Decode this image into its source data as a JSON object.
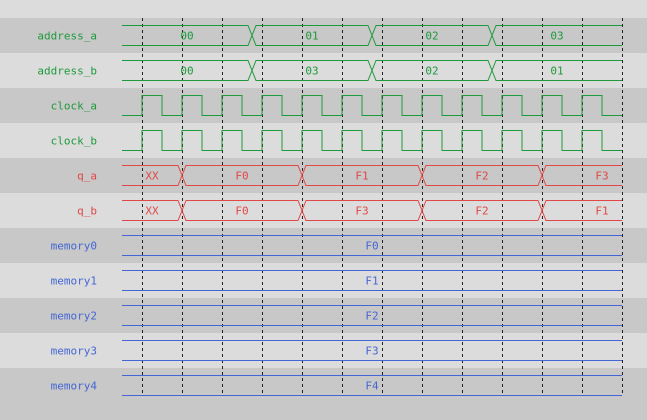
{
  "colors": {
    "row_dark": "#c8c8c8",
    "row_light": "#dcdcdc",
    "address": "#1e9a3c",
    "clock": "#1e9a3c",
    "output": "#e04848",
    "memory": "#4466d4",
    "grid": "#222222"
  },
  "clock_edges": 12,
  "signals": [
    {
      "name": "address_a",
      "kind": "bus",
      "color": "address",
      "segments": [
        {
          "value": "00",
          "start": 0,
          "end": 3
        },
        {
          "value": "01",
          "start": 3,
          "end": 6
        },
        {
          "value": "02",
          "start": 6,
          "end": 9
        },
        {
          "value": "03",
          "start": 9,
          "end": 12.0
        }
      ]
    },
    {
      "name": "address_b",
      "kind": "bus",
      "color": "address",
      "segments": [
        {
          "value": "00",
          "start": 0,
          "end": 3
        },
        {
          "value": "03",
          "start": 3,
          "end": 6
        },
        {
          "value": "02",
          "start": 6,
          "end": 9
        },
        {
          "value": "01",
          "start": 9,
          "end": 12.0
        }
      ]
    },
    {
      "name": "clock_a",
      "kind": "clock",
      "color": "clock"
    },
    {
      "name": "clock_b",
      "kind": "clock",
      "color": "clock"
    },
    {
      "name": "q_a",
      "kind": "bus",
      "color": "output",
      "segments": [
        {
          "value": "XX",
          "start": 0,
          "end": 1
        },
        {
          "value": "F0",
          "start": 1,
          "end": 4
        },
        {
          "value": "F1",
          "start": 4,
          "end": 7
        },
        {
          "value": "F2",
          "start": 7,
          "end": 10
        },
        {
          "value": "F3",
          "start": 10,
          "end": 12.0
        }
      ]
    },
    {
      "name": "q_b",
      "kind": "bus",
      "color": "output",
      "segments": [
        {
          "value": "XX",
          "start": 0,
          "end": 1
        },
        {
          "value": "F0",
          "start": 1,
          "end": 4
        },
        {
          "value": "F3",
          "start": 4,
          "end": 7
        },
        {
          "value": "F2",
          "start": 7,
          "end": 10
        },
        {
          "value": "F1",
          "start": 10,
          "end": 12.0
        }
      ]
    },
    {
      "name": "memory0",
      "kind": "bus",
      "color": "memory",
      "segments": [
        {
          "value": "F0",
          "start": 0,
          "end": 12.0
        }
      ]
    },
    {
      "name": "memory1",
      "kind": "bus",
      "color": "memory",
      "segments": [
        {
          "value": "F1",
          "start": 0,
          "end": 12.0
        }
      ]
    },
    {
      "name": "memory2",
      "kind": "bus",
      "color": "memory",
      "segments": [
        {
          "value": "F2",
          "start": 0,
          "end": 12.0
        }
      ]
    },
    {
      "name": "memory3",
      "kind": "bus",
      "color": "memory",
      "segments": [
        {
          "value": "F3",
          "start": 0,
          "end": 12.0
        }
      ]
    },
    {
      "name": "memory4",
      "kind": "bus",
      "color": "memory",
      "segments": [
        {
          "value": "F4",
          "start": 0,
          "end": 12.0
        }
      ]
    }
  ]
}
